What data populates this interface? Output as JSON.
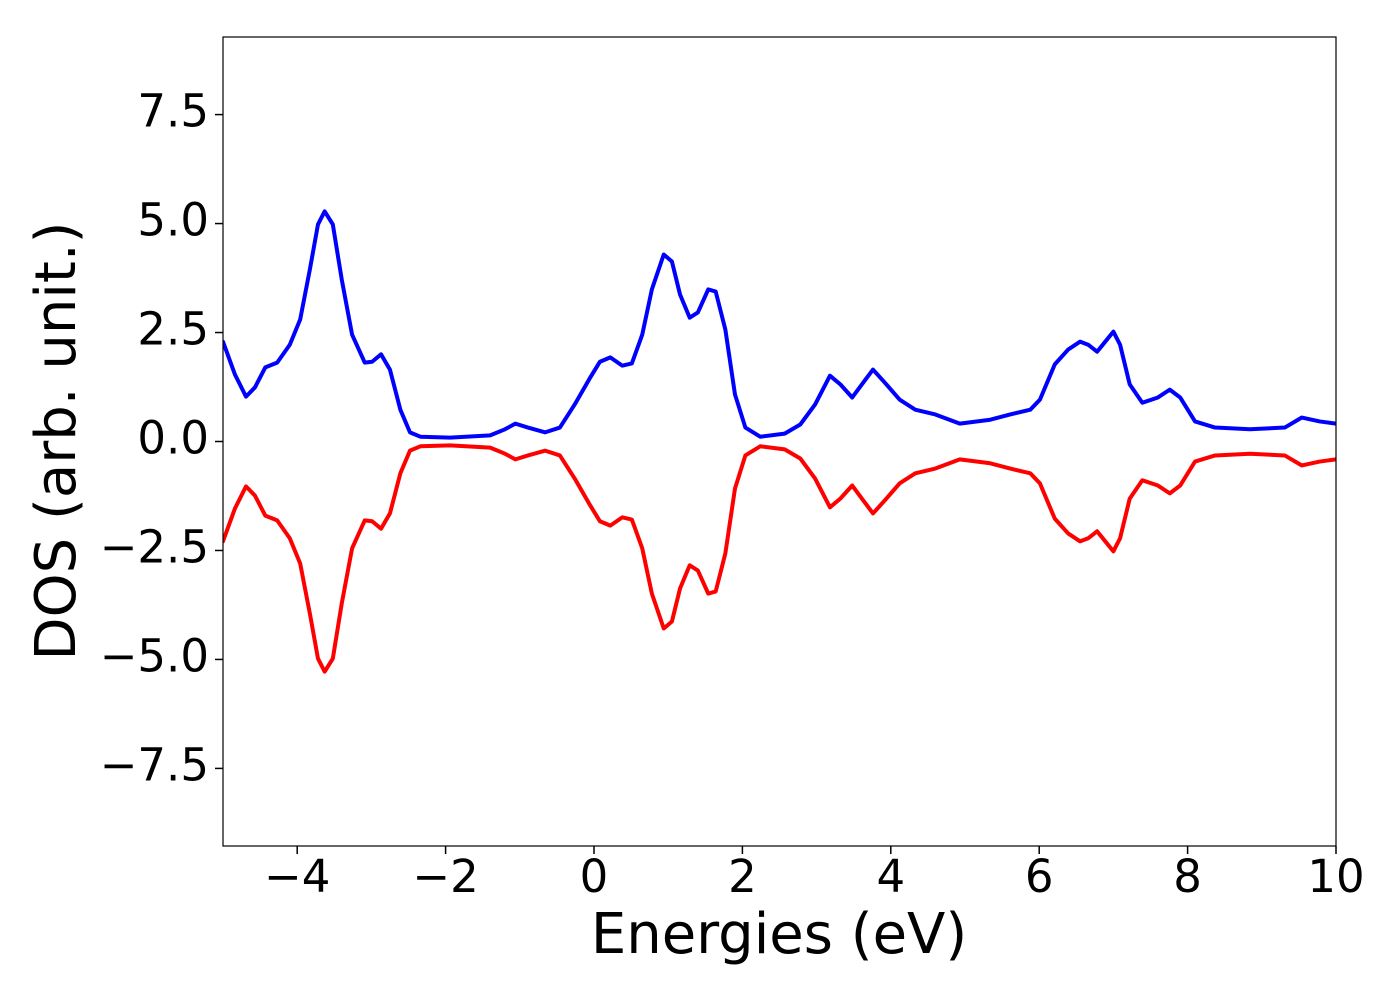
{
  "chart_data": {
    "type": "line",
    "xlabel": "Energies (eV)",
    "ylabel": "DOS (arb. unit.)",
    "x": [
      -5,
      -4.84,
      -4.69,
      -4.57,
      -4.43,
      -4.27,
      -4.1,
      -3.96,
      -3.83,
      -3.72,
      -3.63,
      -3.52,
      -3.4,
      -3.26,
      -3.09,
      -2.99,
      -2.87,
      -2.75,
      -2.61,
      -2.48,
      -2.34,
      -1.94,
      -1.4,
      -1.2,
      -1.06,
      -0.89,
      -0.66,
      -0.46,
      -0.26,
      -0.05,
      0.08,
      0.22,
      0.38,
      0.51,
      0.65,
      0.78,
      0.94,
      1.05,
      1.16,
      1.29,
      1.4,
      1.54,
      1.64,
      1.77,
      1.9,
      2.04,
      2.24,
      2.57,
      2.78,
      2.98,
      3.18,
      3.32,
      3.48,
      3.61,
      3.76,
      3.92,
      4.12,
      4.33,
      4.6,
      4.93,
      5.34,
      5.61,
      5.88,
      6.01,
      6.21,
      6.39,
      6.55,
      6.66,
      6.78,
      6.89,
      7,
      7.09,
      7.22,
      7.39,
      7.6,
      7.76,
      7.9,
      8.1,
      8.37,
      8.84,
      9.31,
      9.54,
      9.78,
      10
    ],
    "series": [
      {
        "color": "#0000ff",
        "values": [
          2.29,
          1.54,
          1.03,
          1.24,
          1.7,
          1.81,
          2.22,
          2.8,
          3.94,
          4.98,
          5.28,
          4.98,
          3.72,
          2.45,
          1.81,
          1.83,
          2,
          1.65,
          0.73,
          0.21,
          0.11,
          0.09,
          0.14,
          0.28,
          0.41,
          0.32,
          0.21,
          0.32,
          0.85,
          1.47,
          1.83,
          1.93,
          1.74,
          1.79,
          2.45,
          3.49,
          4.29,
          4.13,
          3.37,
          2.84,
          2.96,
          3.49,
          3.44,
          2.57,
          1.08,
          0.32,
          0.11,
          0.18,
          0.39,
          0.85,
          1.51,
          1.31,
          1.01,
          1.31,
          1.65,
          1.35,
          0.96,
          0.73,
          0.62,
          0.41,
          0.5,
          0.62,
          0.73,
          0.96,
          1.77,
          2.11,
          2.29,
          2.22,
          2.06,
          2.29,
          2.52,
          2.22,
          1.31,
          0.89,
          1.01,
          1.19,
          1.01,
          0.46,
          0.32,
          0.28,
          0.32,
          0.55,
          0.46,
          0.41
        ]
      },
      {
        "color": "#ff0000",
        "values": [
          -2.29,
          -1.54,
          -1.03,
          -1.24,
          -1.7,
          -1.81,
          -2.22,
          -2.8,
          -3.94,
          -4.98,
          -5.28,
          -4.98,
          -3.72,
          -2.45,
          -1.81,
          -1.83,
          -2,
          -1.65,
          -0.73,
          -0.21,
          -0.11,
          -0.09,
          -0.14,
          -0.28,
          -0.41,
          -0.32,
          -0.21,
          -0.32,
          -0.85,
          -1.47,
          -1.83,
          -1.93,
          -1.74,
          -1.79,
          -2.45,
          -3.49,
          -4.29,
          -4.13,
          -3.37,
          -2.84,
          -2.96,
          -3.49,
          -3.44,
          -2.57,
          -1.08,
          -0.32,
          -0.11,
          -0.18,
          -0.39,
          -0.85,
          -1.51,
          -1.31,
          -1.01,
          -1.31,
          -1.65,
          -1.35,
          -0.96,
          -0.73,
          -0.62,
          -0.41,
          -0.5,
          -0.62,
          -0.73,
          -0.96,
          -1.77,
          -2.11,
          -2.29,
          -2.22,
          -2.06,
          -2.29,
          -2.52,
          -2.22,
          -1.31,
          -0.89,
          -1.01,
          -1.19,
          -1.01,
          -0.46,
          -0.32,
          -0.28,
          -0.32,
          -0.55,
          -0.46,
          -0.41
        ]
      }
    ],
    "xlim": [
      -5,
      10
    ],
    "xticks": [
      {
        "value": -4,
        "label": "−4"
      },
      {
        "value": -2,
        "label": "−2"
      },
      0,
      2,
      4,
      6,
      8,
      10
    ],
    "ylim": [
      -9.28,
      9.28
    ],
    "yticks": [
      {
        "value": -7.5,
        "label": "−7.5"
      },
      {
        "value": -5,
        "label": "−5.0"
      },
      {
        "value": -2.5,
        "label": "−2.5"
      },
      {
        "value": 0,
        "label": "0.0"
      },
      2.5,
      {
        "value": 5,
        "label": "5.0"
      },
      7.5
    ],
    "grid": false
  }
}
